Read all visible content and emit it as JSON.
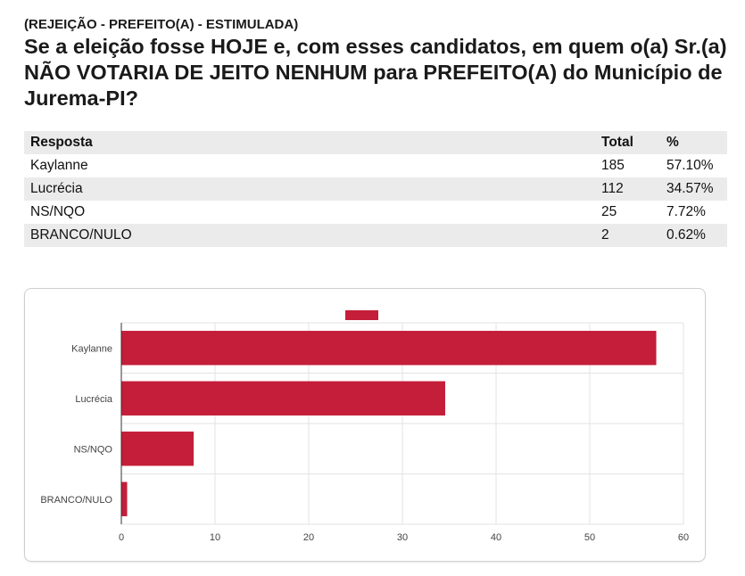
{
  "header": {
    "subtitle": "(REJEIÇÃO - PREFEITO(A) - ESTIMULADA)",
    "title": "Se a eleição fosse HOJE e, com esses candidatos, em quem o(a) Sr.(a) NÃO VOTARIA DE JEITO NENHUM para PREFEITO(A) do Município de Jurema-PI?"
  },
  "table": {
    "columns": [
      "Resposta",
      "Total",
      "%"
    ],
    "rows": [
      {
        "resposta": "Kaylanne",
        "total": "185",
        "pct": "57.10%"
      },
      {
        "resposta": "Lucrécia",
        "total": "112",
        "pct": "34.57%"
      },
      {
        "resposta": "NS/NQO",
        "total": "25",
        "pct": "7.72%"
      },
      {
        "resposta": "BRANCO/NULO",
        "total": "2",
        "pct": "0.62%"
      }
    ]
  },
  "chart_data": {
    "type": "bar",
    "orientation": "horizontal",
    "categories": [
      "Kaylanne",
      "Lucrécia",
      "NS/NQO",
      "BRANCO/NULO"
    ],
    "values": [
      57.1,
      34.57,
      7.72,
      0.62
    ],
    "xlim": [
      0,
      60
    ],
    "xticks": [
      0,
      10,
      20,
      30,
      40,
      50,
      60
    ],
    "grid": true,
    "legend": "top-center",
    "color": "#c41e3a",
    "title": "",
    "xlabel": "",
    "ylabel": ""
  }
}
